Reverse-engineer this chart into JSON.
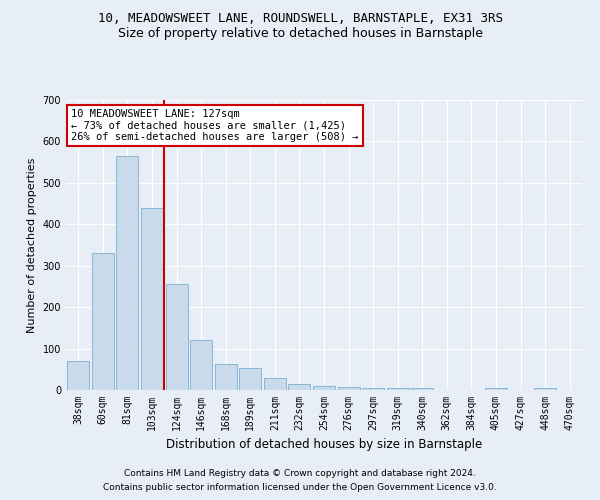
{
  "title": "10, MEADOWSWEET LANE, ROUNDSWELL, BARNSTAPLE, EX31 3RS",
  "subtitle": "Size of property relative to detached houses in Barnstaple",
  "xlabel": "Distribution of detached houses by size in Barnstaple",
  "ylabel": "Number of detached properties",
  "categories": [
    "38sqm",
    "60sqm",
    "81sqm",
    "103sqm",
    "124sqm",
    "146sqm",
    "168sqm",
    "189sqm",
    "211sqm",
    "232sqm",
    "254sqm",
    "276sqm",
    "297sqm",
    "319sqm",
    "340sqm",
    "362sqm",
    "384sqm",
    "405sqm",
    "427sqm",
    "448sqm",
    "470sqm"
  ],
  "values": [
    70,
    330,
    565,
    440,
    255,
    120,
    62,
    52,
    28,
    15,
    10,
    7,
    5,
    5,
    5,
    0,
    0,
    5,
    0,
    5,
    0
  ],
  "bar_color": "#c9daea",
  "bar_edge_color": "#7aafd4",
  "red_line_x": 4,
  "ylim": [
    0,
    700
  ],
  "yticks": [
    0,
    100,
    200,
    300,
    400,
    500,
    600,
    700
  ],
  "annotation_text": "10 MEADOWSWEET LANE: 127sqm\n← 73% of detached houses are smaller (1,425)\n26% of semi-detached houses are larger (508) →",
  "annotation_box_color": "#ffffff",
  "annotation_box_edge_color": "#cc0000",
  "footer_line1": "Contains HM Land Registry data © Crown copyright and database right 2024.",
  "footer_line2": "Contains public sector information licensed under the Open Government Licence v3.0.",
  "background_color": "#e8eef5",
  "plot_background_color": "#e8eef5",
  "grid_color": "#ffffff",
  "title_fontsize": 9,
  "subtitle_fontsize": 9,
  "xlabel_fontsize": 8.5,
  "ylabel_fontsize": 8,
  "tick_fontsize": 7,
  "annotation_fontsize": 7.5,
  "footer_fontsize": 6.5
}
